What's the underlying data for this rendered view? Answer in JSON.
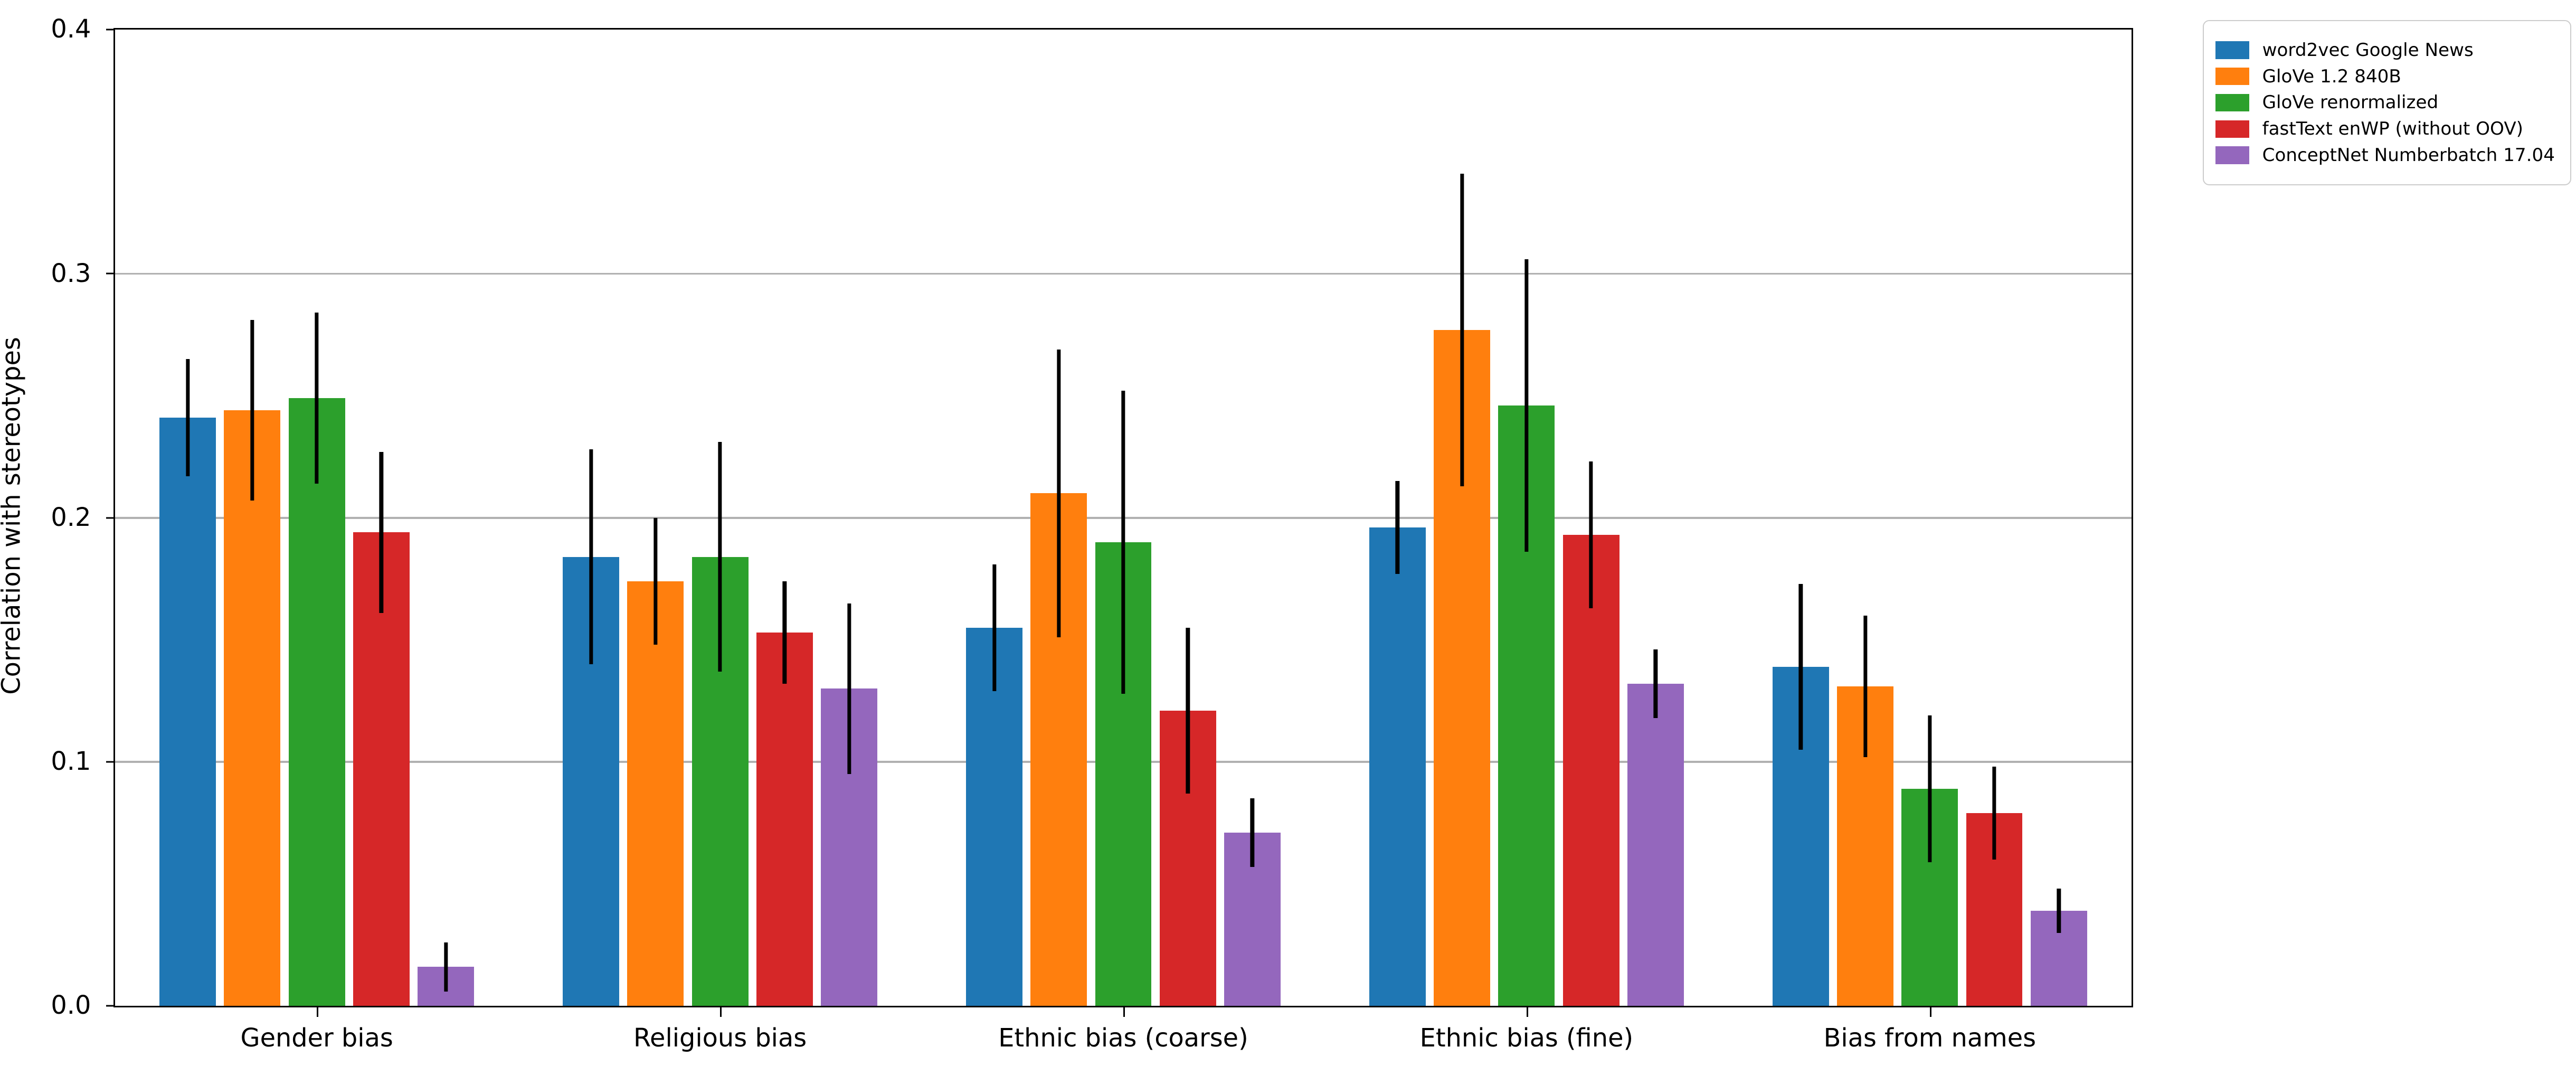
{
  "figure": {
    "background": "#ffffff",
    "text_color": "#000000",
    "spine_color": "#000000",
    "gridline_color": "#b0b0b0",
    "legend_border_color": "#cccccc"
  },
  "chart_data": {
    "type": "bar",
    "title": "",
    "xlabel": "",
    "ylabel": "Correlation with stereotypes",
    "ylim": [
      0,
      0.4
    ],
    "ytick_values": [
      0,
      0.1,
      0.2,
      0.3,
      0.4
    ],
    "ytick_labels": [
      "0.0",
      "0.1",
      "0.2",
      "0.3",
      "0.4"
    ],
    "gridline_values": [
      0.1,
      0.2,
      0.3
    ],
    "grid": "horizontal",
    "legend_position": "top-right-outside",
    "error_bar_color": "#000000",
    "categories": [
      "Gender bias",
      "Religious bias",
      "Ethnic bias (coarse)",
      "Ethnic bias (fine)",
      "Bias from names"
    ],
    "series": [
      {
        "name": "word2vec Google News",
        "color": "#1f77b4",
        "values": [
          0.241,
          0.184,
          0.155,
          0.196,
          0.139
        ],
        "errors": [
          0.024,
          0.044,
          0.026,
          0.019,
          0.034
        ]
      },
      {
        "name": "GloVe 1.2 840B",
        "color": "#ff7f0e",
        "values": [
          0.244,
          0.174,
          0.21,
          0.277,
          0.131
        ],
        "errors": [
          0.037,
          0.026,
          0.059,
          0.064,
          0.029
        ]
      },
      {
        "name": "GloVe renormalized",
        "color": "#2ca02c",
        "values": [
          0.249,
          0.184,
          0.19,
          0.246,
          0.089
        ],
        "errors": [
          0.035,
          0.047,
          0.062,
          0.06,
          0.03
        ]
      },
      {
        "name": "fastText enWP (without OOV)",
        "color": "#d62728",
        "values": [
          0.194,
          0.153,
          0.121,
          0.193,
          0.079
        ],
        "errors": [
          0.033,
          0.021,
          0.034,
          0.03,
          0.019
        ]
      },
      {
        "name": "ConceptNet Numberbatch 17.04",
        "color": "#9467bd",
        "values": [
          0.016,
          0.13,
          0.071,
          0.132,
          0.039
        ],
        "errors": [
          0.01,
          0.035,
          0.014,
          0.014,
          0.009
        ]
      }
    ]
  }
}
